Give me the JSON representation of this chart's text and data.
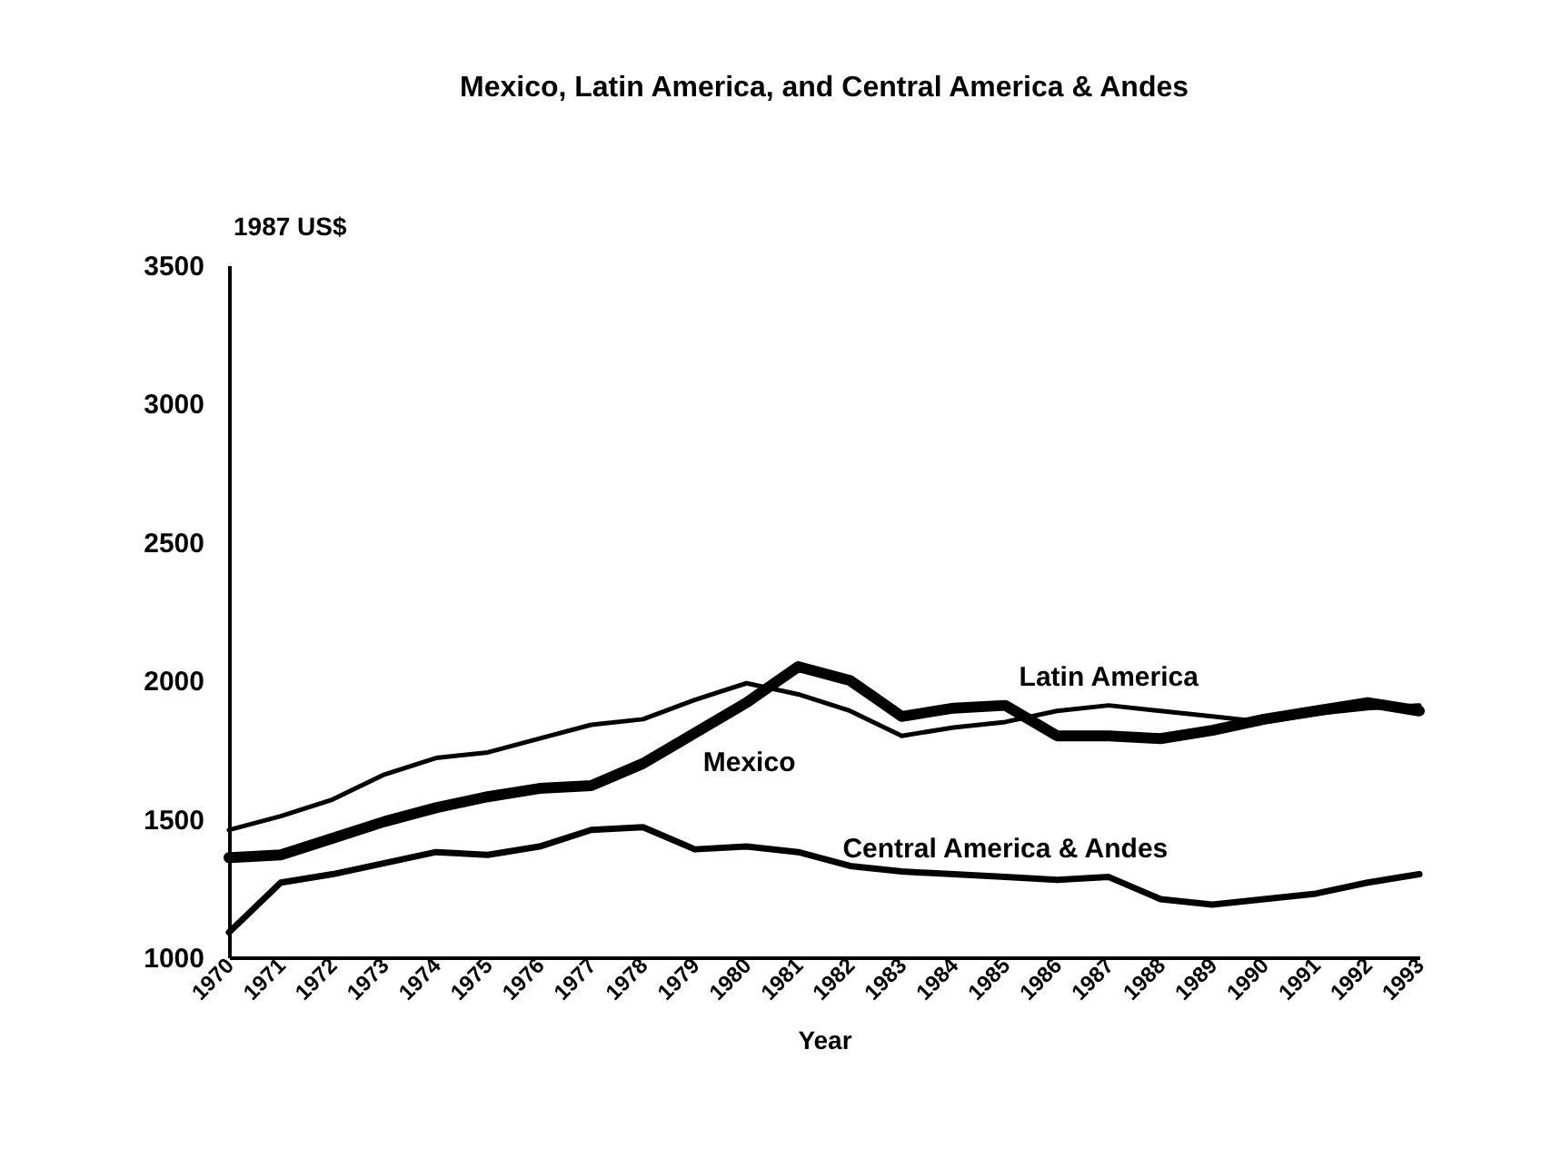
{
  "chart_data": {
    "type": "line",
    "title": "Mexico, Latin America, and Central America & Andes",
    "xlabel": "Year",
    "ylabel": "1987 US$",
    "categories": [
      "1970",
      "1971",
      "1972",
      "1973",
      "1974",
      "1975",
      "1976",
      "1977",
      "1978",
      "1979",
      "1980",
      "1981",
      "1982",
      "1983",
      "1984",
      "1985",
      "1986",
      "1987",
      "1988",
      "1989",
      "1990",
      "1991",
      "1992",
      "1993"
    ],
    "series": [
      {
        "name": "Mexico",
        "color": "#000000",
        "values": [
          1360,
          1370,
          1430,
          1490,
          1540,
          1580,
          1610,
          1620,
          1700,
          1810,
          1920,
          2050,
          2000,
          1870,
          1900,
          1910,
          1800,
          1800,
          1790,
          1820,
          1860,
          1890,
          1920,
          1890
        ]
      },
      {
        "name": "Latin America",
        "color": "#000000",
        "values": [
          1460,
          1510,
          1570,
          1660,
          1720,
          1740,
          1790,
          1840,
          1860,
          1930,
          1990,
          1950,
          1890,
          1800,
          1830,
          1850,
          1890,
          1910,
          1890,
          1870,
          1850,
          1880,
          1900,
          1910
        ]
      },
      {
        "name": "Central America & Andes",
        "color": "#000000",
        "values": [
          1090,
          1270,
          1300,
          1340,
          1380,
          1370,
          1400,
          1460,
          1470,
          1390,
          1400,
          1380,
          1330,
          1310,
          1300,
          1290,
          1280,
          1290,
          1210,
          1190,
          1210,
          1230,
          1270,
          1300
        ]
      }
    ],
    "ylim": [
      1000,
      3500
    ],
    "yticks": [
      1000,
      1500,
      2000,
      2500,
      3000,
      3500
    ],
    "grid": false,
    "legend": false,
    "marker": "none",
    "line_style": "solid"
  }
}
